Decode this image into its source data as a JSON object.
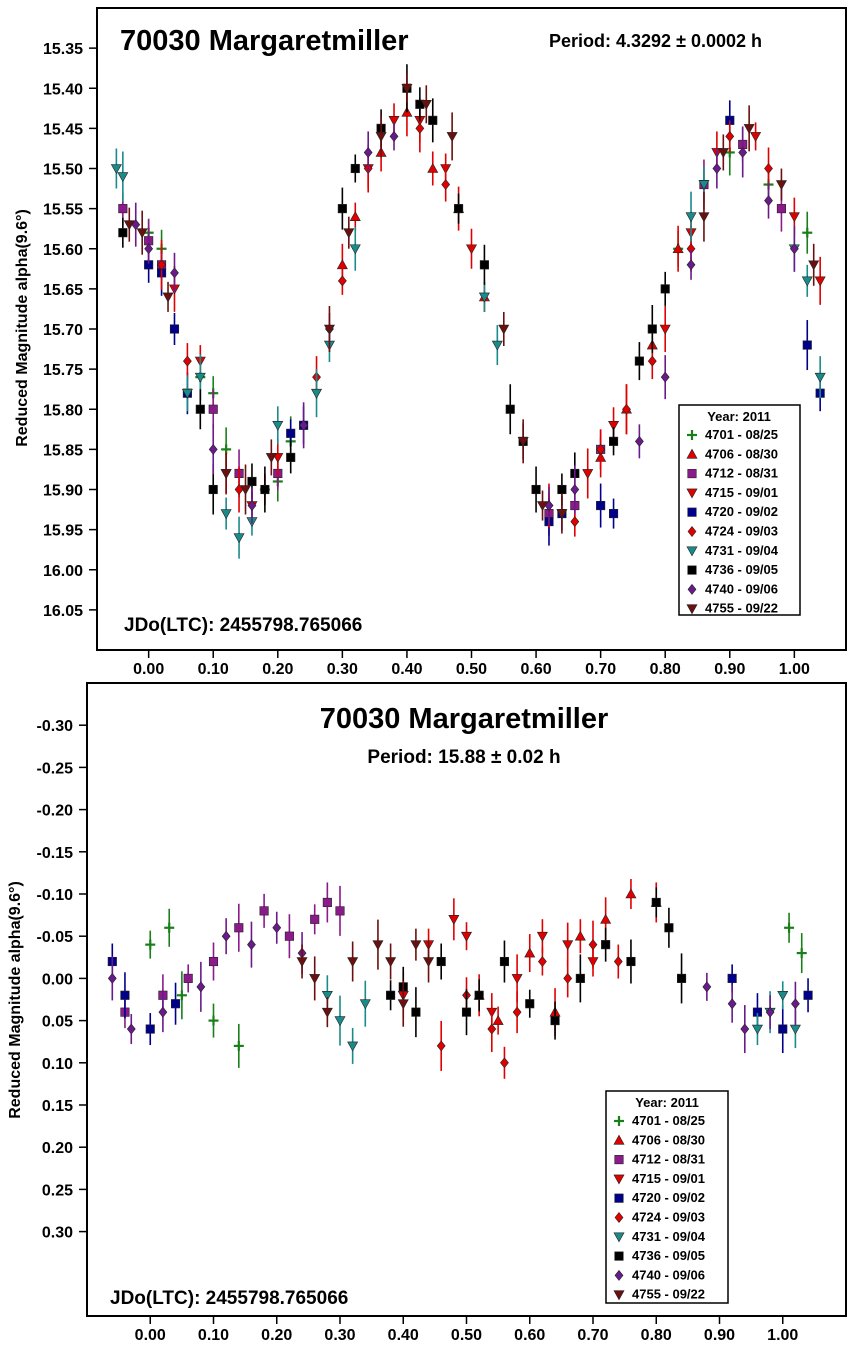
{
  "chart_data": [
    {
      "type": "scatter",
      "title": "70030 Margaretmiller",
      "period_label": "Period: 4.3292 ± 0.0002 h",
      "epoch_label": "JDo(LTC): 2455798.765066",
      "ylabel": "Reduced Magnitude alpha(9.6°)",
      "xlabel": "",
      "xlim": [
        -0.08,
        1.08
      ],
      "ylim": [
        15.3,
        16.1
      ],
      "y_inverted": true,
      "x_ticks": [
        "0.00",
        "0.10",
        "0.20",
        "0.30",
        "0.40",
        "0.50",
        "0.60",
        "0.70",
        "0.80",
        "0.90",
        "1.00"
      ],
      "y_ticks": [
        "15.35",
        "15.40",
        "15.45",
        "15.50",
        "15.55",
        "15.60",
        "15.65",
        "15.70",
        "15.75",
        "15.80",
        "15.85",
        "15.90",
        "15.95",
        "16.00",
        "16.05"
      ],
      "curve": {
        "mean": 15.71,
        "h1_amp": 0.205,
        "h1_phase": 0.52,
        "note_shape": "bimodal"
      },
      "legend": {
        "title": "Year: 2011",
        "position": "bottom-right",
        "entries": [
          {
            "label": "4701 - 08/25",
            "color": "#1a7f1a",
            "marker": "plus"
          },
          {
            "label": "4706 - 08/30",
            "color": "#e00000",
            "marker": "triangle-up"
          },
          {
            "label": "4712 - 08/31",
            "color": "#8b1a8b",
            "marker": "square"
          },
          {
            "label": "4715 - 09/01",
            "color": "#e00000",
            "marker": "triangle-down"
          },
          {
            "label": "4720 - 09/02",
            "color": "#00008b",
            "marker": "square"
          },
          {
            "label": "4724 - 09/03",
            "color": "#e00000",
            "marker": "diamond"
          },
          {
            "label": "4731 - 09/04",
            "color": "#1a8b8b",
            "marker": "triangle-down"
          },
          {
            "label": "4736 - 09/05",
            "color": "#000000",
            "marker": "square"
          },
          {
            "label": "4740 - 09/06",
            "color": "#6a1a8b",
            "marker": "diamond"
          },
          {
            "label": "4755 - 09/22",
            "color": "#6b0f0f",
            "marker": "triangle-down"
          }
        ]
      },
      "series": [
        {
          "name": "4701 - 08/25",
          "x": [
            0.0,
            0.02,
            0.08,
            0.1,
            0.12,
            0.18,
            0.2,
            0.22,
            0.82,
            0.9,
            0.96,
            1.02
          ],
          "y": [
            15.58,
            15.6,
            15.76,
            15.78,
            15.85,
            15.9,
            15.89,
            15.84,
            15.6,
            15.48,
            15.52,
            15.58
          ]
        },
        {
          "name": "4706 - 08/30",
          "x": [
            0.3,
            0.32,
            0.36,
            0.4,
            0.44,
            0.48,
            0.52,
            0.7,
            0.74,
            0.78,
            0.82
          ],
          "y": [
            15.62,
            15.56,
            15.48,
            15.43,
            15.5,
            15.55,
            15.66,
            15.86,
            15.8,
            15.72,
            15.6
          ]
        },
        {
          "name": "4712 - 08/31",
          "x": [
            -0.04,
            0.0,
            0.02,
            0.1,
            0.14,
            0.2,
            0.62,
            0.66,
            0.7,
            0.86,
            0.92,
            0.98
          ],
          "y": [
            15.55,
            15.59,
            15.62,
            15.8,
            15.88,
            15.88,
            15.93,
            15.92,
            15.85,
            15.52,
            15.47,
            15.55
          ]
        },
        {
          "name": "4715 - 09/01",
          "x": [
            0.04,
            0.08,
            0.12,
            0.16,
            0.2,
            0.34,
            0.38,
            0.42,
            0.46,
            0.5,
            0.68,
            0.72,
            0.8,
            0.84,
            0.88,
            0.94,
            1.0,
            1.04
          ],
          "y": [
            15.65,
            15.74,
            15.88,
            15.92,
            15.86,
            15.5,
            15.44,
            15.44,
            15.5,
            15.6,
            15.88,
            15.82,
            15.7,
            15.58,
            15.48,
            15.46,
            15.56,
            15.64
          ]
        },
        {
          "name": "4720 - 09/02",
          "x": [
            0.0,
            0.02,
            0.04,
            0.06,
            0.22,
            0.24,
            0.62,
            0.64,
            0.7,
            0.72,
            0.9,
            1.02,
            1.04
          ],
          "y": [
            15.62,
            15.63,
            15.7,
            15.78,
            15.83,
            15.82,
            15.94,
            15.93,
            15.92,
            15.93,
            15.44,
            15.72,
            15.78
          ]
        },
        {
          "name": "4724 - 09/03",
          "x": [
            0.02,
            0.06,
            0.14,
            0.18,
            0.26,
            0.3,
            0.34,
            0.42,
            0.46,
            0.62,
            0.66,
            0.7,
            0.74,
            0.78,
            0.84,
            0.9,
            0.96
          ],
          "y": [
            15.62,
            15.74,
            15.9,
            15.9,
            15.76,
            15.64,
            15.5,
            15.45,
            15.52,
            15.92,
            15.94,
            15.85,
            15.8,
            15.74,
            15.6,
            15.46,
            15.5
          ]
        },
        {
          "name": "4731 - 09/04",
          "x": [
            -0.05,
            -0.04,
            0.06,
            0.08,
            0.12,
            0.14,
            0.16,
            0.2,
            0.26,
            0.28,
            0.32,
            0.52,
            0.54,
            0.84,
            0.86,
            1.0,
            1.02,
            1.04
          ],
          "y": [
            15.5,
            15.51,
            15.78,
            15.76,
            15.93,
            15.96,
            15.94,
            15.82,
            15.78,
            15.72,
            15.6,
            15.66,
            15.72,
            15.56,
            15.52,
            15.6,
            15.64,
            15.76
          ]
        },
        {
          "name": "4736 - 09/05",
          "x": [
            -0.04,
            0.08,
            0.1,
            0.16,
            0.18,
            0.22,
            0.3,
            0.32,
            0.36,
            0.4,
            0.42,
            0.44,
            0.48,
            0.52,
            0.56,
            0.58,
            0.6,
            0.64,
            0.66,
            0.72,
            0.76,
            0.78,
            0.8
          ],
          "y": [
            15.58,
            15.8,
            15.9,
            15.89,
            15.9,
            15.86,
            15.55,
            15.5,
            15.45,
            15.4,
            15.42,
            15.44,
            15.55,
            15.62,
            15.8,
            15.84,
            15.9,
            15.9,
            15.88,
            15.84,
            15.74,
            15.7,
            15.65
          ]
        },
        {
          "name": "4740 - 09/06",
          "x": [
            -0.02,
            0.0,
            0.04,
            0.1,
            0.16,
            0.24,
            0.28,
            0.34,
            0.38,
            0.62,
            0.66,
            0.76,
            0.8,
            0.84,
            0.88,
            0.92,
            0.96,
            1.0
          ],
          "y": [
            15.57,
            15.6,
            15.63,
            15.85,
            15.92,
            15.82,
            15.7,
            15.48,
            15.46,
            15.92,
            15.9,
            15.84,
            15.76,
            15.62,
            15.5,
            15.48,
            15.54,
            15.6
          ]
        },
        {
          "name": "4755 - 09/22",
          "x": [
            -0.03,
            -0.01,
            0.03,
            0.12,
            0.15,
            0.19,
            0.28,
            0.31,
            0.36,
            0.4,
            0.43,
            0.47,
            0.55,
            0.58,
            0.61,
            0.64,
            0.86,
            0.89,
            0.93,
            0.98,
            1.03
          ],
          "y": [
            15.57,
            15.58,
            15.66,
            15.88,
            15.9,
            15.86,
            15.7,
            15.58,
            15.46,
            15.4,
            15.42,
            15.46,
            15.7,
            15.84,
            15.92,
            15.93,
            15.56,
            15.48,
            15.45,
            15.52,
            15.62
          ]
        }
      ]
    },
    {
      "type": "scatter",
      "title": "70030 Margaretmiller",
      "period_label": "Period: 15.88 ± 0.02 h",
      "epoch_label": "JDo(LTC): 2455798.765066",
      "ylabel": "Reduced Magnitude alpha(9.6°)",
      "xlabel": "",
      "xlim": [
        -0.1,
        1.1
      ],
      "ylim": [
        -0.35,
        0.4
      ],
      "y_inverted": true,
      "x_ticks": [
        "0.00",
        "0.10",
        "0.20",
        "0.30",
        "0.40",
        "0.50",
        "0.60",
        "0.70",
        "0.80",
        "0.90",
        "1.00"
      ],
      "y_ticks": [
        "-0.30",
        "-0.25",
        "-0.20",
        "-0.15",
        "-0.10",
        "-0.05",
        "0.00",
        "0.05",
        "0.10",
        "0.15",
        "0.20",
        "0.25",
        "0.30"
      ],
      "legend": {
        "title": "Year: 2011",
        "position": "bottom-right",
        "entries": [
          {
            "label": "4701 - 08/25",
            "color": "#1a7f1a",
            "marker": "plus"
          },
          {
            "label": "4706 - 08/30",
            "color": "#e00000",
            "marker": "triangle-up"
          },
          {
            "label": "4712 - 08/31",
            "color": "#8b1a8b",
            "marker": "square"
          },
          {
            "label": "4715 - 09/01",
            "color": "#e00000",
            "marker": "triangle-down"
          },
          {
            "label": "4720 - 09/02",
            "color": "#00008b",
            "marker": "square"
          },
          {
            "label": "4724 - 09/03",
            "color": "#e00000",
            "marker": "diamond"
          },
          {
            "label": "4731 - 09/04",
            "color": "#1a8b8b",
            "marker": "triangle-down"
          },
          {
            "label": "4736 - 09/05",
            "color": "#000000",
            "marker": "square"
          },
          {
            "label": "4740 - 09/06",
            "color": "#6a1a8b",
            "marker": "diamond"
          },
          {
            "label": "4755 - 09/22",
            "color": "#6b0f0f",
            "marker": "triangle-down"
          }
        ]
      },
      "series": [
        {
          "name": "4701 - 08/25",
          "x": [
            0.0,
            0.03,
            0.05,
            0.1,
            0.14,
            1.01,
            1.03
          ],
          "y": [
            -0.04,
            -0.06,
            0.02,
            0.05,
            0.08,
            -0.06,
            -0.03
          ]
        },
        {
          "name": "4706 - 08/30",
          "x": [
            0.52,
            0.55,
            0.6,
            0.64,
            0.68,
            0.72,
            0.76,
            0.8
          ],
          "y": [
            0.02,
            0.05,
            -0.03,
            0.04,
            -0.05,
            -0.07,
            -0.1,
            -0.09
          ]
        },
        {
          "name": "4712 - 08/31",
          "x": [
            -0.04,
            0.02,
            0.06,
            0.1,
            0.14,
            0.18,
            0.22,
            0.26,
            0.28,
            0.3
          ],
          "y": [
            0.04,
            0.02,
            0.0,
            -0.02,
            -0.06,
            -0.08,
            -0.05,
            -0.07,
            -0.09,
            -0.08
          ]
        },
        {
          "name": "4715 - 09/01",
          "x": [
            0.4,
            0.44,
            0.48,
            0.5,
            0.54,
            0.58,
            0.62,
            0.66,
            0.7
          ],
          "y": [
            0.02,
            -0.04,
            -0.07,
            -0.05,
            0.04,
            0.0,
            -0.05,
            -0.04,
            -0.02
          ]
        },
        {
          "name": "4720 - 09/02",
          "x": [
            -0.06,
            -0.04,
            0.0,
            0.04,
            0.92,
            0.96,
            1.0,
            1.04
          ],
          "y": [
            -0.02,
            0.02,
            0.06,
            0.03,
            0.0,
            0.04,
            0.06,
            0.02
          ]
        },
        {
          "name": "4724 - 09/03",
          "x": [
            0.46,
            0.5,
            0.54,
            0.56,
            0.58,
            0.62,
            0.66,
            0.7,
            0.74
          ],
          "y": [
            0.08,
            0.02,
            0.06,
            0.1,
            0.04,
            -0.02,
            0.0,
            -0.04,
            -0.02
          ]
        },
        {
          "name": "4731 - 09/04",
          "x": [
            0.28,
            0.3,
            0.32,
            0.34,
            0.96,
            0.98,
            1.0,
            1.02
          ],
          "y": [
            0.02,
            0.05,
            0.08,
            0.03,
            0.06,
            0.04,
            0.02,
            0.06
          ]
        },
        {
          "name": "4736 - 09/05",
          "x": [
            0.38,
            0.4,
            0.42,
            0.46,
            0.5,
            0.52,
            0.56,
            0.6,
            0.64,
            0.68,
            0.72,
            0.76,
            0.8,
            0.82,
            0.84
          ],
          "y": [
            0.02,
            0.01,
            0.04,
            -0.02,
            0.04,
            0.02,
            -0.02,
            0.03,
            0.05,
            0.0,
            -0.04,
            -0.02,
            -0.09,
            -0.06,
            0.0
          ]
        },
        {
          "name": "4740 - 09/06",
          "x": [
            -0.06,
            -0.03,
            0.02,
            0.08,
            0.12,
            0.16,
            0.2,
            0.24,
            0.88,
            0.92,
            0.94,
            0.98,
            1.02
          ],
          "y": [
            0.0,
            0.06,
            0.04,
            0.01,
            -0.05,
            -0.04,
            -0.06,
            -0.03,
            0.01,
            0.03,
            0.06,
            0.04,
            0.03
          ]
        },
        {
          "name": "4755 - 09/22",
          "x": [
            0.24,
            0.26,
            0.28,
            0.32,
            0.36,
            0.38,
            0.4,
            0.42,
            0.44
          ],
          "y": [
            -0.02,
            0.0,
            0.04,
            -0.02,
            -0.04,
            -0.02,
            0.03,
            -0.04,
            -0.02
          ]
        }
      ]
    }
  ]
}
